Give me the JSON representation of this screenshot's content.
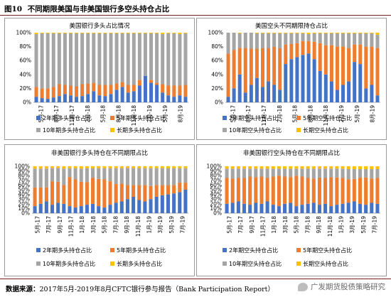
{
  "figure": {
    "number": "图10",
    "title": "不同期限美国与非美国银行多空头持仓占比"
  },
  "source": {
    "label": "数据来源：",
    "text": "2017年5月-2019年8月CFTC银行参与报告（Bank Participation Report）"
  },
  "watermark": {
    "text": "广发期货股债策略研究"
  },
  "colors": {
    "y2": "#4472c4",
    "y5": "#ed7d31",
    "y10": "#a5a5a5",
    "long": "#ffc000"
  },
  "chart_data": [
    {
      "type": "bar",
      "stacked": true,
      "title": "美国银行多头占比情况",
      "y_ticks": [
        "0%",
        "20%",
        "40%",
        "60%",
        "80%",
        "100%"
      ],
      "ylim": [
        0,
        100
      ],
      "x_ticks": [
        "5月-17",
        "8月-17",
        "11月-17",
        "2月-18",
        "5月-18",
        "8月-18",
        "11月-18",
        "2月-19",
        "5月-19",
        "8月-19"
      ],
      "legend": [
        "2年期多头持仓占比",
        "5年期多头持仓占比",
        "10年期多头持仓占比",
        "长期多头持仓占比"
      ],
      "series": [
        {
          "name": "2年期多头持仓占比",
          "values": [
            8,
            6,
            5,
            7,
            9,
            12,
            10,
            8,
            9,
            12,
            16,
            10,
            9,
            12,
            18,
            22,
            14,
            16,
            24,
            38,
            28,
            25,
            14,
            10,
            8,
            10,
            8
          ]
        },
        {
          "name": "5年期多头持仓占比",
          "values": [
            14,
            14,
            15,
            15,
            17,
            13,
            14,
            15,
            17,
            15,
            12,
            15,
            16,
            13,
            9,
            7,
            11,
            9,
            8,
            0,
            4,
            3,
            12,
            14,
            16,
            14,
            17
          ]
        },
        {
          "name": "10年期多头持仓占比",
          "values": [
            76,
            79,
            79,
            77,
            73,
            74,
            75,
            76,
            73,
            72,
            71,
            74,
            74,
            74,
            72,
            70,
            74,
            74,
            67,
            61,
            67,
            71,
            72,
            75,
            75,
            74,
            74
          ]
        },
        {
          "name": "长期多头持仓占比",
          "values": [
            2,
            1,
            1,
            1,
            1,
            1,
            1,
            1,
            1,
            1,
            1,
            1,
            1,
            1,
            1,
            1,
            1,
            1,
            1,
            1,
            1,
            1,
            2,
            1,
            1,
            2,
            1
          ]
        }
      ]
    },
    {
      "type": "bar",
      "stacked": true,
      "title": "美国空头不同期限持仓占比",
      "y_ticks": [
        "0%",
        "20%",
        "40%",
        "60%",
        "80%",
        "100%"
      ],
      "ylim": [
        0,
        100
      ],
      "x_ticks": [
        "5月-17",
        "8月-17",
        "11月-17",
        "2月-18",
        "5月-18",
        "8月-18",
        "11月-18",
        "2月-19",
        "5月-19",
        "8月-19"
      ],
      "legend": [
        "2年期空头持仓占比",
        "5年期空头持仓占比",
        "10年期空头持仓占比",
        "长期空头持仓占比"
      ],
      "series": [
        {
          "name": "2年期空头持仓占比",
          "values": [
            8,
            20,
            40,
            14,
            25,
            35,
            22,
            30,
            25,
            18,
            55,
            62,
            65,
            68,
            70,
            62,
            45,
            40,
            30,
            18,
            25,
            30,
            58,
            55,
            20,
            25,
            10
          ]
        },
        {
          "name": "5年期空头持仓占比",
          "values": [
            62,
            55,
            38,
            64,
            52,
            42,
            56,
            48,
            55,
            60,
            28,
            22,
            20,
            20,
            18,
            25,
            40,
            42,
            52,
            62,
            55,
            48,
            25,
            28,
            60,
            55,
            68
          ]
        },
        {
          "name": "10年期空头持仓占比",
          "values": [
            30,
            25,
            21,
            22,
            23,
            22,
            21,
            21,
            19,
            21,
            16,
            15,
            14,
            11,
            10,
            12,
            14,
            17,
            17,
            19,
            19,
            21,
            16,
            16,
            19,
            19,
            19
          ]
        },
        {
          "name": "长期空头持仓占比",
          "values": [
            0,
            0,
            1,
            0,
            0,
            1,
            1,
            1,
            1,
            1,
            1,
            1,
            1,
            1,
            2,
            1,
            1,
            1,
            1,
            1,
            1,
            1,
            1,
            1,
            1,
            1,
            3
          ]
        }
      ]
    },
    {
      "type": "bar",
      "stacked": true,
      "title": "非美国银行多头持仓在不同期限占比",
      "y_ticks": [
        "0%",
        "10%",
        "20%",
        "30%",
        "40%",
        "50%",
        "60%",
        "70%",
        "80%",
        "90%",
        "100%"
      ],
      "ylim": [
        0,
        100
      ],
      "x_ticks": [
        "5月-17",
        "7月-17",
        "9月-17",
        "11月-17",
        "1月-18",
        "3月-18",
        "5月-18",
        "7月-18",
        "9月-18",
        "11月-18",
        "1月-19",
        "3月-19",
        "5月-19",
        "7月-19"
      ],
      "legend": [
        "2年期多头持仓占比",
        "5年期多头持仓占比",
        "10年期多头持仓占比",
        "长期多头持仓占比"
      ],
      "series": [
        {
          "name": "2年期多头持仓占比",
          "values": [
            15,
            20,
            25,
            18,
            22,
            20,
            15,
            12,
            15,
            18,
            20,
            15,
            12,
            18,
            22,
            25,
            30,
            35,
            28,
            25,
            30,
            35,
            38,
            40,
            42,
            45,
            50
          ]
        },
        {
          "name": "5年期多头持仓占比",
          "values": [
            40,
            35,
            30,
            50,
            45,
            40,
            62,
            60,
            52,
            48,
            55,
            58,
            60,
            50,
            40,
            38,
            30,
            25,
            32,
            35,
            28,
            25,
            22,
            20,
            18,
            20,
            15
          ]
        },
        {
          "name": "10年期多头持仓占比",
          "values": [
            40,
            40,
            40,
            28,
            29,
            35,
            19,
            24,
            28,
            30,
            21,
            23,
            24,
            28,
            34,
            33,
            36,
            36,
            36,
            36,
            38,
            36,
            36,
            36,
            36,
            31,
            31
          ]
        },
        {
          "name": "长期多头持仓占比",
          "values": [
            5,
            5,
            5,
            4,
            4,
            5,
            4,
            4,
            5,
            4,
            4,
            4,
            4,
            4,
            4,
            4,
            4,
            4,
            4,
            4,
            4,
            4,
            4,
            4,
            4,
            4,
            4
          ]
        }
      ]
    },
    {
      "type": "bar",
      "stacked": true,
      "title": "非美国银行空头持仓在不同期限占比",
      "y_ticks": [
        "0%",
        "10%",
        "20%",
        "30%",
        "40%",
        "50%",
        "60%",
        "70%",
        "80%",
        "90%",
        "100%"
      ],
      "ylim": [
        0,
        100
      ],
      "x_ticks": [
        "5月-17",
        "7月-17",
        "9月-17",
        "11月-17",
        "1月-18",
        "3月-18",
        "5月-18",
        "7月-18",
        "9月-18",
        "11月-18",
        "1月-19",
        "3月-19",
        "5月-19",
        "7月-19"
      ],
      "legend": [
        "2年期空头持仓占比",
        "5年期空头持仓占比",
        "10年期空头持仓占比",
        "长期空头持仓占比"
      ],
      "series": [
        {
          "name": "2年期空头持仓占比",
          "values": [
            20,
            22,
            25,
            20,
            18,
            22,
            20,
            25,
            18,
            15,
            20,
            22,
            15,
            18,
            20,
            22,
            18,
            20,
            15,
            18,
            20,
            22,
            25,
            20,
            18,
            22,
            20
          ]
        },
        {
          "name": "5年期空头持仓占比",
          "values": [
            55,
            52,
            50,
            55,
            60,
            55,
            58,
            50,
            60,
            65,
            58,
            55,
            65,
            60,
            55,
            52,
            58,
            55,
            62,
            58,
            55,
            50,
            48,
            55,
            58,
            52,
            55
          ]
        },
        {
          "name": "10年期空头持仓占比",
          "values": [
            20,
            21,
            20,
            20,
            17,
            18,
            17,
            20,
            17,
            15,
            17,
            18,
            15,
            17,
            20,
            21,
            19,
            20,
            18,
            19,
            20,
            22,
            21,
            19,
            18,
            20,
            19
          ]
        },
        {
          "name": "长期空头持仓占比",
          "values": [
            5,
            5,
            5,
            5,
            5,
            5,
            5,
            5,
            5,
            5,
            5,
            5,
            5,
            5,
            5,
            5,
            5,
            5,
            5,
            5,
            5,
            6,
            6,
            6,
            6,
            6,
            6
          ]
        }
      ]
    }
  ]
}
